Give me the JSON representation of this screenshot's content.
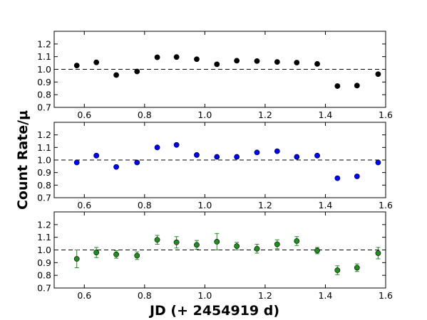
{
  "chart_data": {
    "type": "scatter",
    "xlabel": "JD (+ 2454919 d)",
    "ylabel": "Count Rate/μ",
    "xlim": [
      0.5,
      1.6
    ],
    "ylim": [
      0.7,
      1.3
    ],
    "x_ticks": [
      0.6,
      0.8,
      1.0,
      1.2,
      1.4,
      1.6
    ],
    "x_tick_labels": [
      "0.6",
      "0.8",
      "1.0",
      "1.2",
      "1.4",
      "1.6"
    ],
    "y_ticks": [
      0.7,
      0.8,
      0.9,
      1.0,
      1.1,
      1.2
    ],
    "y_tick_labels": [
      "0.7",
      "0.8",
      "0.9",
      "1.0",
      "1.1",
      "1.2"
    ],
    "reference_line": 1.0,
    "x": [
      0.575,
      0.64,
      0.706,
      0.775,
      0.842,
      0.906,
      0.973,
      1.04,
      1.106,
      1.173,
      1.24,
      1.305,
      1.373,
      1.44,
      1.505,
      1.575
    ],
    "panels": [
      {
        "color": "#000000",
        "y": [
          1.03,
          1.055,
          0.955,
          0.983,
          1.095,
          1.097,
          1.08,
          1.04,
          1.068,
          1.065,
          1.058,
          1.053,
          1.043,
          0.868,
          0.872,
          0.962
        ],
        "yerr": null
      },
      {
        "color": "#0000ff",
        "y": [
          0.98,
          1.035,
          0.945,
          0.98,
          1.1,
          1.12,
          1.04,
          1.025,
          1.025,
          1.06,
          1.07,
          1.025,
          1.035,
          0.855,
          0.87,
          0.98
        ],
        "yerr": null
      },
      {
        "color": "#228b22",
        "y": [
          0.93,
          0.98,
          0.965,
          0.955,
          1.08,
          1.06,
          1.04,
          1.065,
          1.03,
          1.01,
          1.045,
          1.07,
          0.995,
          0.84,
          0.86,
          0.975
        ],
        "yerr": [
          0.07,
          0.04,
          0.03,
          0.03,
          0.035,
          0.045,
          0.035,
          0.065,
          0.03,
          0.035,
          0.035,
          0.035,
          0.025,
          0.035,
          0.03,
          0.045
        ]
      }
    ]
  }
}
